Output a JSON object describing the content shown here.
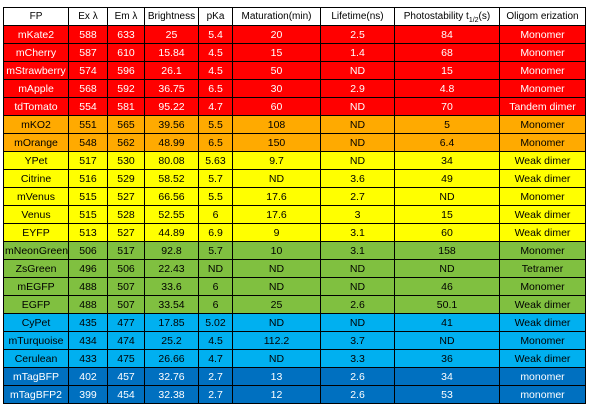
{
  "table": {
    "headers": {
      "fp": "FP",
      "ex": "Ex λ",
      "em": "Em λ",
      "brightness": "Brightness",
      "pka": "pKa",
      "maturation": "Maturation(min)",
      "lifetime": "Lifetime(ns)",
      "photostability_main": "Photostability t",
      "photostability_sub": "1/2",
      "photostability_unit": "(s)",
      "oligomerization": "Oligom erization"
    },
    "colors": {
      "red": "#ff0000",
      "orange": "#ffaa00",
      "yellow": "#ffff00",
      "green": "#80c040",
      "cyan": "#00b0f0",
      "blue": "#0070c0"
    },
    "rows": [
      {
        "band": "red",
        "text_color": "#ffffff",
        "cells": [
          "mKate2",
          "588",
          "633",
          "25",
          "5.4",
          "20",
          "2.5",
          "84",
          "Monomer"
        ]
      },
      {
        "band": "red",
        "text_color": "#ffffff",
        "cells": [
          "mCherry",
          "587",
          "610",
          "15.84",
          "4.5",
          "15",
          "1.4",
          "68",
          "Monomer"
        ]
      },
      {
        "band": "red",
        "text_color": "#ffffff",
        "cells": [
          "mStrawberry",
          "574",
          "596",
          "26.1",
          "4.5",
          "50",
          "ND",
          "15",
          "Monomer"
        ]
      },
      {
        "band": "red",
        "text_color": "#ffffff",
        "cells": [
          "mApple",
          "568",
          "592",
          "36.75",
          "6.5",
          "30",
          "2.9",
          "4.8",
          "Monomer"
        ]
      },
      {
        "band": "red",
        "text_color": "#ffffff",
        "cells": [
          "tdTomato",
          "554",
          "581",
          "95.22",
          "4.7",
          "60",
          "ND",
          "70",
          "Tandem dimer"
        ]
      },
      {
        "band": "orange",
        "text_color": "#000000",
        "cells": [
          "mKO2",
          "551",
          "565",
          "39.56",
          "5.5",
          "108",
          "ND",
          "5",
          "Monomer"
        ]
      },
      {
        "band": "orange",
        "text_color": "#000000",
        "cells": [
          "mOrange",
          "548",
          "562",
          "48.99",
          "6.5",
          "150",
          "ND",
          "6.4",
          "Monomer"
        ]
      },
      {
        "band": "yellow",
        "text_color": "#000000",
        "cells": [
          "YPet",
          "517",
          "530",
          "80.08",
          "5.63",
          "9.7",
          "ND",
          "34",
          "Weak dimer"
        ]
      },
      {
        "band": "yellow",
        "text_color": "#000000",
        "cells": [
          "Citrine",
          "516",
          "529",
          "58.52",
          "5.7",
          "ND",
          "3.6",
          "49",
          "Weak dimer"
        ]
      },
      {
        "band": "yellow",
        "text_color": "#000000",
        "cells": [
          "mVenus",
          "515",
          "527",
          "66.56",
          "5.5",
          "17.6",
          "2.7",
          "ND",
          "Monomer"
        ]
      },
      {
        "band": "yellow",
        "text_color": "#000000",
        "cells": [
          "Venus",
          "515",
          "528",
          "52.55",
          "6",
          "17.6",
          "3",
          "15",
          "Weak dimer"
        ]
      },
      {
        "band": "yellow",
        "text_color": "#000000",
        "cells": [
          "EYFP",
          "513",
          "527",
          "44.89",
          "6.9",
          "9",
          "3.1",
          "60",
          "Weak dimer"
        ]
      },
      {
        "band": "green",
        "text_color": "#000000",
        "cells": [
          "mNeonGreen",
          "506",
          "517",
          "92.8",
          "5.7",
          "10",
          "3.1",
          "158",
          "Monomer"
        ]
      },
      {
        "band": "green",
        "text_color": "#000000",
        "cells": [
          "ZsGreen",
          "496",
          "506",
          "22.43",
          "ND",
          "ND",
          "ND",
          "ND",
          "Tetramer"
        ]
      },
      {
        "band": "green",
        "text_color": "#000000",
        "cells": [
          "mEGFP",
          "488",
          "507",
          "33.6",
          "6",
          "ND",
          "ND",
          "46",
          "Monomer"
        ]
      },
      {
        "band": "green",
        "text_color": "#000000",
        "cells": [
          "EGFP",
          "488",
          "507",
          "33.54",
          "6",
          "25",
          "2.6",
          "50.1",
          "Weak dimer"
        ]
      },
      {
        "band": "cyan",
        "text_color": "#000000",
        "cells": [
          "CyPet",
          "435",
          "477",
          "17.85",
          "5.02",
          "ND",
          "ND",
          "41",
          "Weak dimer"
        ]
      },
      {
        "band": "cyan",
        "text_color": "#000000",
        "cells": [
          "mTurquoise",
          "434",
          "474",
          "25.2",
          "4.5",
          "112.2",
          "3.7",
          "ND",
          "Monomer"
        ]
      },
      {
        "band": "cyan",
        "text_color": "#000000",
        "cells": [
          "Cerulean",
          "433",
          "475",
          "26.66",
          "4.7",
          "ND",
          "3.3",
          "36",
          "Weak dimer"
        ]
      },
      {
        "band": "blue",
        "text_color": "#ffffff",
        "cells": [
          "mTagBFP",
          "402",
          "457",
          "32.76",
          "2.7",
          "13",
          "2.6",
          "34",
          "monomer"
        ]
      },
      {
        "band": "blue",
        "text_color": "#ffffff",
        "cells": [
          "mTagBFP2",
          "399",
          "454",
          "32.38",
          "2.7",
          "12",
          "2.6",
          "53",
          "monomer"
        ]
      }
    ]
  }
}
